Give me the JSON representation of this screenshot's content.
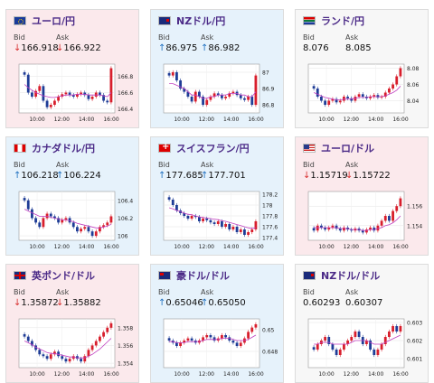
{
  "cards": [
    {
      "pair": "ユーロ/円",
      "flag": "eu-jp-flag-icon",
      "flag_class": "flag-eu",
      "trend": "down",
      "bid": "166.918",
      "ask": "166.922",
      "bid_dir": "down",
      "ask_dir": "down"
    },
    {
      "pair": "NZドル/円",
      "flag": "nz-jp-flag-icon",
      "flag_class": "flag-nz",
      "trend": "up",
      "bid": "86.975",
      "ask": "86.982",
      "bid_dir": "up",
      "ask_dir": "up"
    },
    {
      "pair": "ランド/円",
      "flag": "za-jp-flag-icon",
      "flag_class": "flag-za",
      "trend": "flat",
      "bid": "8.076",
      "ask": "8.085",
      "bid_dir": "none",
      "ask_dir": "none"
    },
    {
      "pair": "カナダドル/円",
      "flag": "ca-jp-flag-icon",
      "flag_class": "flag-ca",
      "trend": "up",
      "bid": "106.218",
      "ask": "106.224",
      "bid_dir": "up",
      "ask_dir": "up"
    },
    {
      "pair": "スイスフラン/円",
      "flag": "ch-jp-flag-icon",
      "flag_class": "flag-ch",
      "trend": "up",
      "bid": "177.685",
      "ask": "177.701",
      "bid_dir": "up",
      "ask_dir": "up"
    },
    {
      "pair": "ユーロ/ドル",
      "flag": "eu-us-flag-icon",
      "flag_class": "flag-us",
      "trend": "down",
      "bid": "1.15719",
      "ask": "1.15722",
      "bid_dir": "down",
      "ask_dir": "down"
    },
    {
      "pair": "英ポンド/ドル",
      "flag": "gb-us-flag-icon",
      "flag_class": "flag-gb",
      "trend": "down",
      "bid": "1.35872",
      "ask": "1.35882",
      "bid_dir": "down",
      "ask_dir": "down"
    },
    {
      "pair": "豪ドル/ドル",
      "flag": "au-us-flag-icon",
      "flag_class": "flag-au",
      "trend": "up",
      "bid": "0.65046",
      "ask": "0.65050",
      "bid_dir": "up",
      "ask_dir": "up"
    },
    {
      "pair": "NZドル/ドル",
      "flag": "nz-us-flag-icon",
      "flag_class": "flag-nz",
      "trend": "flat",
      "bid": "0.60293",
      "ask": "0.60307",
      "bid_dir": "none",
      "ask_dir": "none"
    }
  ],
  "labels": {
    "bid": "Bid",
    "ask": "Ask"
  },
  "colors": {
    "up": "#d81e2c",
    "down": "#1e3c96",
    "ma": "#c040c0"
  },
  "chart_data": [
    {
      "type": "candlestick",
      "xticks": [
        "10:00",
        "12:00",
        "14:00",
        "16:00"
      ],
      "yticks": [
        "166.8",
        "166.6",
        "166.4"
      ],
      "ylim": [
        166.35,
        166.95
      ],
      "close": [
        166.82,
        166.6,
        166.55,
        166.62,
        166.68,
        166.5,
        166.42,
        166.45,
        166.5,
        166.55,
        166.58,
        166.6,
        166.57,
        166.55,
        166.58,
        166.6,
        166.57,
        166.52,
        166.55,
        166.6,
        166.57,
        166.5,
        166.48,
        166.9
      ],
      "ma": [
        166.7,
        166.66,
        166.63,
        166.6,
        166.58,
        166.56,
        166.55,
        166.54,
        166.54,
        166.55,
        166.56,
        166.57,
        166.57,
        166.57,
        166.58,
        166.58,
        166.58,
        166.57,
        166.57,
        166.57,
        166.57,
        166.56,
        166.55,
        166.6
      ]
    },
    {
      "type": "candlestick",
      "xticks": [
        "10:00",
        "12:00",
        "14:00",
        "16:00"
      ],
      "yticks": [
        "87",
        "86.9",
        "86.8"
      ],
      "ylim": [
        86.75,
        87.05
      ],
      "close": [
        86.98,
        87.0,
        86.95,
        86.9,
        86.88,
        86.85,
        86.82,
        86.88,
        86.85,
        86.8,
        86.83,
        86.85,
        86.87,
        86.86,
        86.84,
        86.85,
        86.87,
        86.88,
        86.86,
        86.84,
        86.83,
        86.85,
        86.8,
        86.98
      ],
      "ma": [
        86.93,
        86.93,
        86.92,
        86.91,
        86.9,
        86.88,
        86.86,
        86.86,
        86.85,
        86.84,
        86.84,
        86.85,
        86.85,
        86.86,
        86.86,
        86.86,
        86.87,
        86.87,
        86.87,
        86.86,
        86.86,
        86.85,
        86.85,
        86.88
      ]
    },
    {
      "type": "candlestick",
      "xticks": [
        "10:00",
        "12:00",
        "14:00",
        "16:00"
      ],
      "yticks": [
        "8.08",
        "8.06",
        "8.04"
      ],
      "ylim": [
        8.025,
        8.085
      ],
      "close": [
        8.055,
        8.045,
        8.04,
        8.035,
        8.04,
        8.042,
        8.038,
        8.04,
        8.045,
        8.043,
        8.04,
        8.045,
        8.048,
        8.045,
        8.043,
        8.045,
        8.047,
        8.044,
        8.045,
        8.05,
        8.055,
        8.06,
        8.07,
        8.08
      ],
      "ma": [
        8.05,
        8.048,
        8.046,
        8.044,
        8.043,
        8.042,
        8.041,
        8.041,
        8.042,
        8.042,
        8.042,
        8.043,
        8.044,
        8.044,
        8.044,
        8.045,
        8.045,
        8.045,
        8.045,
        8.046,
        8.048,
        8.05,
        8.053,
        8.058
      ]
    },
    {
      "type": "candlestick",
      "xticks": [
        "10:00",
        "12:00",
        "14:00",
        "16:00"
      ],
      "yticks": [
        "106.4",
        "106.2",
        "106"
      ],
      "ylim": [
        105.95,
        106.5
      ],
      "close": [
        106.4,
        106.3,
        106.2,
        106.15,
        106.1,
        106.2,
        106.25,
        106.22,
        106.2,
        106.15,
        106.18,
        106.2,
        106.15,
        106.1,
        106.05,
        106.08,
        106.1,
        106.05,
        106.0,
        106.05,
        106.1,
        106.12,
        106.15,
        106.22
      ],
      "ma": [
        106.3,
        106.28,
        106.26,
        106.24,
        106.22,
        106.22,
        106.22,
        106.21,
        106.2,
        106.19,
        106.18,
        106.18,
        106.17,
        106.16,
        106.14,
        106.13,
        106.12,
        106.11,
        106.1,
        106.09,
        106.09,
        106.1,
        106.11,
        106.13
      ]
    },
    {
      "type": "candlestick",
      "xticks": [
        "10:00",
        "12:00",
        "14:00",
        "16:00"
      ],
      "yticks": [
        "178.2",
        "178",
        "177.8",
        "177.6",
        "177.4"
      ],
      "ylim": [
        177.35,
        178.25
      ],
      "close": [
        178.1,
        178.0,
        177.9,
        177.85,
        177.8,
        177.75,
        177.8,
        177.78,
        177.7,
        177.75,
        177.72,
        177.68,
        177.65,
        177.7,
        177.6,
        177.65,
        177.55,
        177.6,
        177.5,
        177.55,
        177.45,
        177.5,
        177.55,
        177.7
      ],
      "ma": [
        177.95,
        177.93,
        177.9,
        177.88,
        177.85,
        177.83,
        177.82,
        177.8,
        177.78,
        177.77,
        177.76,
        177.75,
        177.74,
        177.73,
        177.71,
        177.7,
        177.68,
        177.66,
        177.64,
        177.62,
        177.6,
        177.58,
        177.57,
        177.58
      ]
    },
    {
      "type": "candlestick",
      "xticks": [
        "10:00",
        "12:00",
        "14:00",
        "16:00"
      ],
      "yticks": [
        "1.156",
        "1.154"
      ],
      "ylim": [
        1.1525,
        1.1575
      ],
      "close": [
        1.1535,
        1.154,
        1.1538,
        1.1536,
        1.1538,
        1.154,
        1.1537,
        1.1535,
        1.1538,
        1.1536,
        1.1535,
        1.1537,
        1.1535,
        1.1533,
        1.1536,
        1.1538,
        1.1535,
        1.154,
        1.1545,
        1.155,
        1.1545,
        1.1555,
        1.156,
        1.1568
      ],
      "ma": [
        1.1538,
        1.1538,
        1.1538,
        1.1538,
        1.1538,
        1.1538,
        1.1538,
        1.1537,
        1.1537,
        1.1537,
        1.1536,
        1.1536,
        1.1536,
        1.1535,
        1.1535,
        1.1536,
        1.1536,
        1.1537,
        1.1538,
        1.154,
        1.1541,
        1.1543,
        1.1546,
        1.155
      ]
    },
    {
      "type": "candlestick",
      "xticks": [
        "10:00",
        "12:00",
        "14:00",
        "16:00"
      ],
      "yticks": [
        "1.358",
        "1.356",
        "1.354"
      ],
      "ylim": [
        1.3535,
        1.359
      ],
      "close": [
        1.357,
        1.3565,
        1.356,
        1.3555,
        1.355,
        1.3548,
        1.3545,
        1.355,
        1.3553,
        1.3548,
        1.3545,
        1.3542,
        1.3545,
        1.3548,
        1.3545,
        1.3542,
        1.3548,
        1.3555,
        1.356,
        1.3565,
        1.357,
        1.3575,
        1.358,
        1.3585
      ],
      "ma": [
        1.3565,
        1.3563,
        1.3561,
        1.3558,
        1.3556,
        1.3554,
        1.3552,
        1.3551,
        1.3551,
        1.355,
        1.3549,
        1.3548,
        1.3547,
        1.3547,
        1.3546,
        1.3546,
        1.3546,
        1.3548,
        1.355,
        1.3553,
        1.3556,
        1.356,
        1.3564,
        1.3568
      ]
    },
    {
      "type": "candlestick",
      "xticks": [
        "10:00",
        "12:00",
        "14:00",
        "16:00"
      ],
      "yticks": [
        "0.65",
        "0.648"
      ],
      "ylim": [
        0.6465,
        0.651
      ],
      "close": [
        0.649,
        0.6488,
        0.6485,
        0.6488,
        0.649,
        0.6492,
        0.649,
        0.6488,
        0.649,
        0.6493,
        0.6495,
        0.6493,
        0.649,
        0.6492,
        0.6495,
        0.6493,
        0.649,
        0.6488,
        0.6485,
        0.6488,
        0.6492,
        0.6498,
        0.6502,
        0.6505
      ],
      "ma": [
        0.6489,
        0.6489,
        0.6488,
        0.6488,
        0.6488,
        0.6489,
        0.6489,
        0.6489,
        0.6489,
        0.649,
        0.6491,
        0.6491,
        0.6491,
        0.6491,
        0.6492,
        0.6492,
        0.6492,
        0.6491,
        0.649,
        0.649,
        0.649,
        0.6491,
        0.6493,
        0.6495
      ]
    },
    {
      "type": "candlestick",
      "xticks": [
        "10:00",
        "12:00",
        "14:00",
        "16:00"
      ],
      "yticks": [
        "0.603",
        "0.602",
        "0.601"
      ],
      "ylim": [
        0.6005,
        0.6032
      ],
      "close": [
        0.6015,
        0.6018,
        0.602,
        0.6022,
        0.6018,
        0.6015,
        0.6012,
        0.6015,
        0.6018,
        0.602,
        0.6022,
        0.6025,
        0.6022,
        0.6018,
        0.602,
        0.6015,
        0.6012,
        0.6015,
        0.6018,
        0.6022,
        0.6025,
        0.6028,
        0.6025,
        0.6028
      ],
      "ma": [
        0.6018,
        0.6018,
        0.6019,
        0.6019,
        0.6019,
        0.6018,
        0.6018,
        0.6018,
        0.6018,
        0.6018,
        0.6019,
        0.602,
        0.602,
        0.602,
        0.602,
        0.6019,
        0.6018,
        0.6018,
        0.6018,
        0.6019,
        0.602,
        0.6021,
        0.6022,
        0.6023
      ]
    }
  ]
}
